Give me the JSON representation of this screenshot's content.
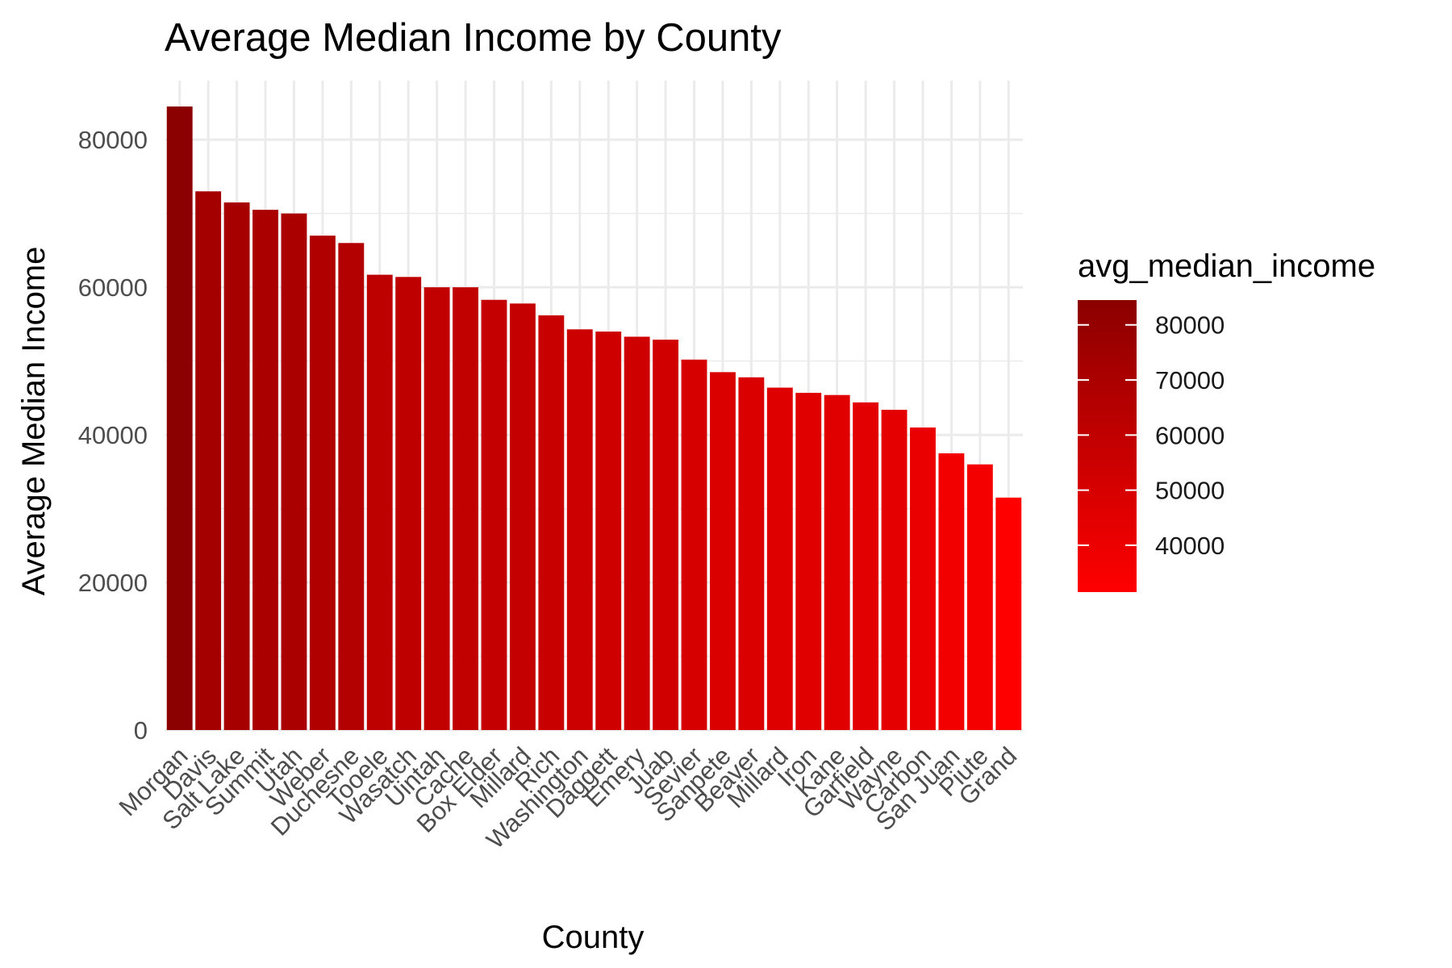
{
  "chart_data": {
    "type": "bar",
    "title": "Average Median Income by County",
    "xlabel": "County",
    "ylabel": "Average Median Income",
    "ylim": [
      0,
      88000
    ],
    "yticks": [
      "0",
      "20000",
      "40000",
      "60000",
      "80000"
    ],
    "grid": true,
    "categories": [
      "Morgan",
      "Davis",
      "Salt Lake",
      "Summit",
      "Utah",
      "Weber",
      "Duchesne",
      "Tooele",
      "Wasatch",
      "Uintah",
      "Cache",
      "Box Elder",
      "Millard",
      "Rich",
      "Washington",
      "Daggett",
      "Emery",
      "Juab",
      "Sevier",
      "Sanpete",
      "Beaver",
      "Millard",
      "Iron",
      "Kane",
      "Garfield",
      "Wayne",
      "Carbon",
      "San Juan",
      "Piute",
      "Grand"
    ],
    "values": [
      84500,
      73000,
      71500,
      70500,
      70000,
      67000,
      66000,
      61700,
      61400,
      60000,
      60000,
      58300,
      57800,
      56200,
      54300,
      54000,
      53300,
      52900,
      50200,
      48500,
      47800,
      46400,
      45700,
      45400,
      44400,
      43400,
      41000,
      37500,
      36000,
      31500
    ],
    "legend": {
      "title": "avg_median_income",
      "position": "right",
      "labels": [
        "80000",
        "70000",
        "60000",
        "50000",
        "40000"
      ],
      "range": [
        31500,
        84500
      ],
      "low_color": "#FF0000",
      "high_color": "#8B0000"
    }
  }
}
